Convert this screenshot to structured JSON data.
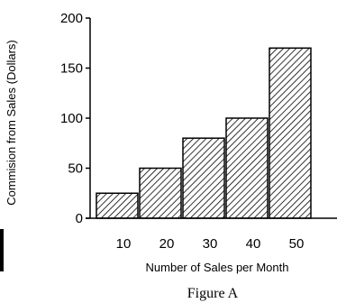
{
  "chart_data": {
    "type": "bar",
    "categories": [
      "10",
      "20",
      "30",
      "40",
      "50"
    ],
    "values": [
      25,
      50,
      80,
      100,
      170
    ],
    "ylim": [
      0,
      200
    ],
    "yticks": [
      "0",
      "50",
      "100",
      "150",
      "200"
    ],
    "xlabel": "Number of Sales per Month",
    "ylabel": "Commision from Sales  (Dollars)",
    "caption": "Figure A",
    "grid": false,
    "bar_pattern": "diagonal-hatch",
    "colors": {
      "bar_stroke": "#000000",
      "hatch": "#000000",
      "background": "#ffffff"
    }
  }
}
